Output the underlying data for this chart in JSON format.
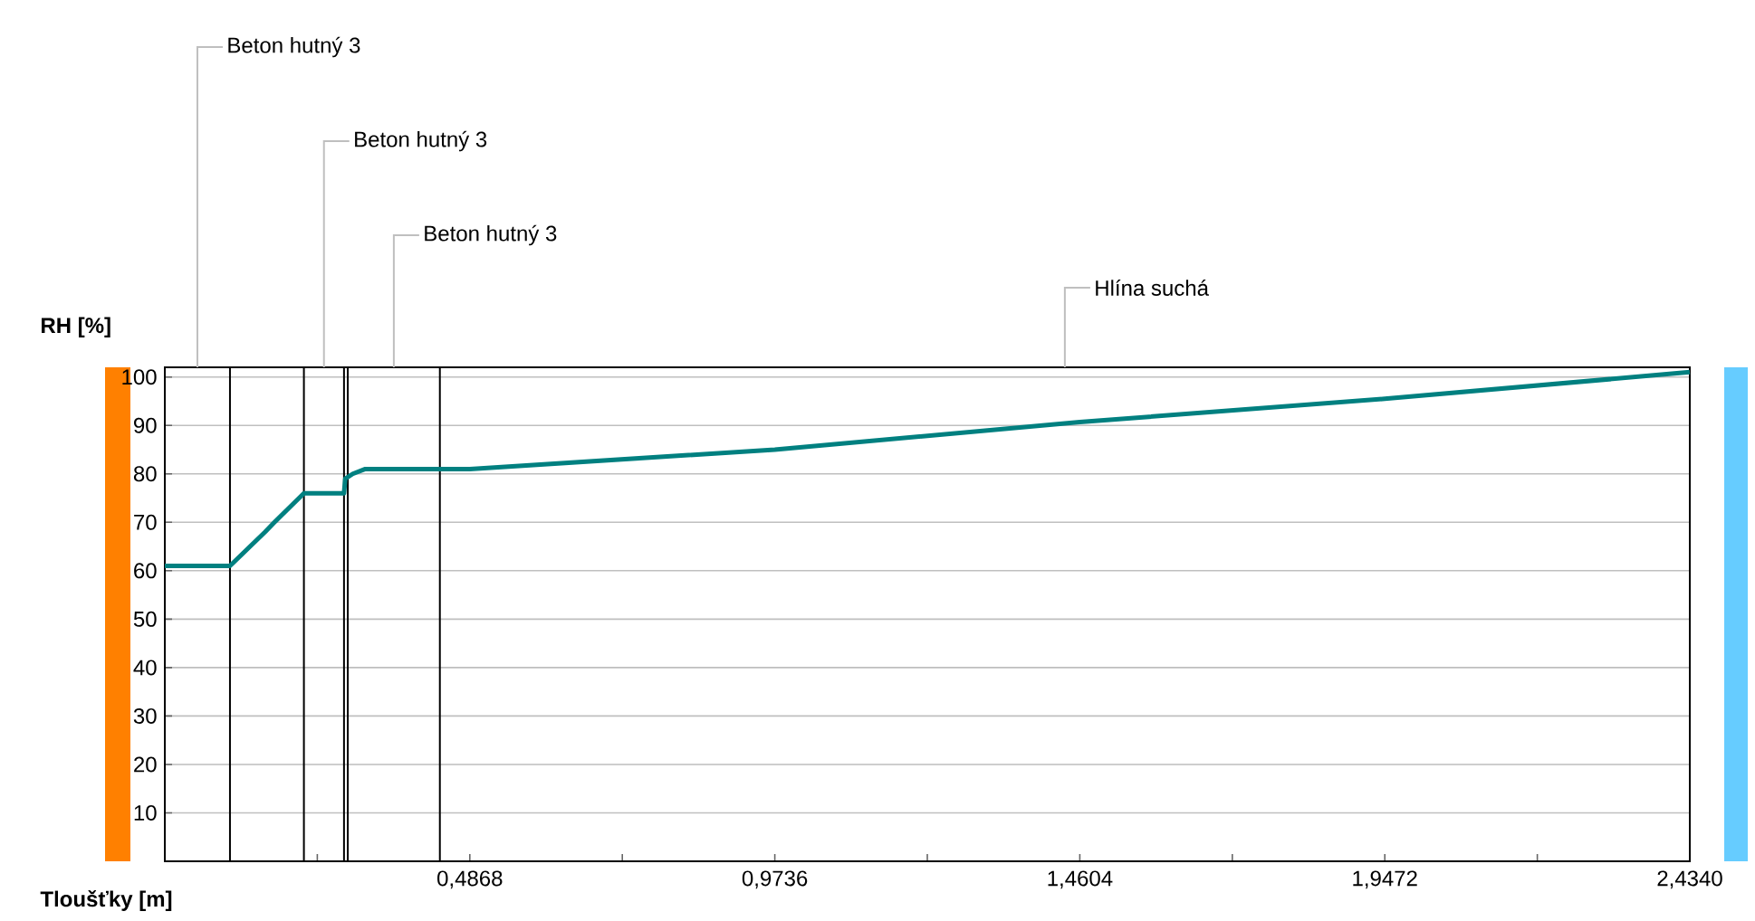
{
  "chart_data": {
    "type": "line",
    "xlabel": "Tloušťky [m]",
    "ylabel": "RH [%]",
    "x": [
      0,
      0.104,
      0.16,
      0.175,
      0.222,
      0.286,
      0.288,
      0.3,
      0.32,
      0.439,
      0.4868,
      0.9736,
      1.4604,
      1.9472,
      2.434
    ],
    "series": [
      {
        "color": "#008080",
        "values": [
          61,
          61,
          68,
          70,
          76,
          76,
          79,
          80,
          81,
          81,
          81,
          85,
          90.7,
          95.5,
          101
        ]
      }
    ],
    "xlim": [
      0,
      2.434
    ],
    "ylim": [
      0,
      102
    ],
    "xticks": [
      {
        "value": 0.2434,
        "label": null
      },
      {
        "value": 0.4868,
        "label": "0,4868"
      },
      {
        "value": 0.7302,
        "label": null
      },
      {
        "value": 0.9736,
        "label": "0,9736"
      },
      {
        "value": 1.217,
        "label": null
      },
      {
        "value": 1.4604,
        "label": "1,4604"
      },
      {
        "value": 1.7038,
        "label": null
      },
      {
        "value": 1.9472,
        "label": "1,9472"
      },
      {
        "value": 2.1906,
        "label": null
      },
      {
        "value": 2.434,
        "label": "2,4340"
      }
    ],
    "yticks": [
      10,
      20,
      30,
      40,
      50,
      60,
      70,
      80,
      90,
      100
    ],
    "grid": "y",
    "ref_lines": [
      {
        "axis": "x",
        "value": 0.104,
        "color": "#000000"
      },
      {
        "axis": "x",
        "value": 0.222,
        "color": "#000000"
      },
      {
        "axis": "x",
        "value": 0.286,
        "color": "#000000"
      },
      {
        "axis": "x",
        "value": 0.292,
        "color": "#000000"
      },
      {
        "axis": "x",
        "value": 0.439,
        "color": "#000000"
      }
    ],
    "annotations": [
      "Beton hutný 3",
      "Beton hutný 3",
      "Beton hutný 3",
      "Hlína suchá"
    ]
  }
}
